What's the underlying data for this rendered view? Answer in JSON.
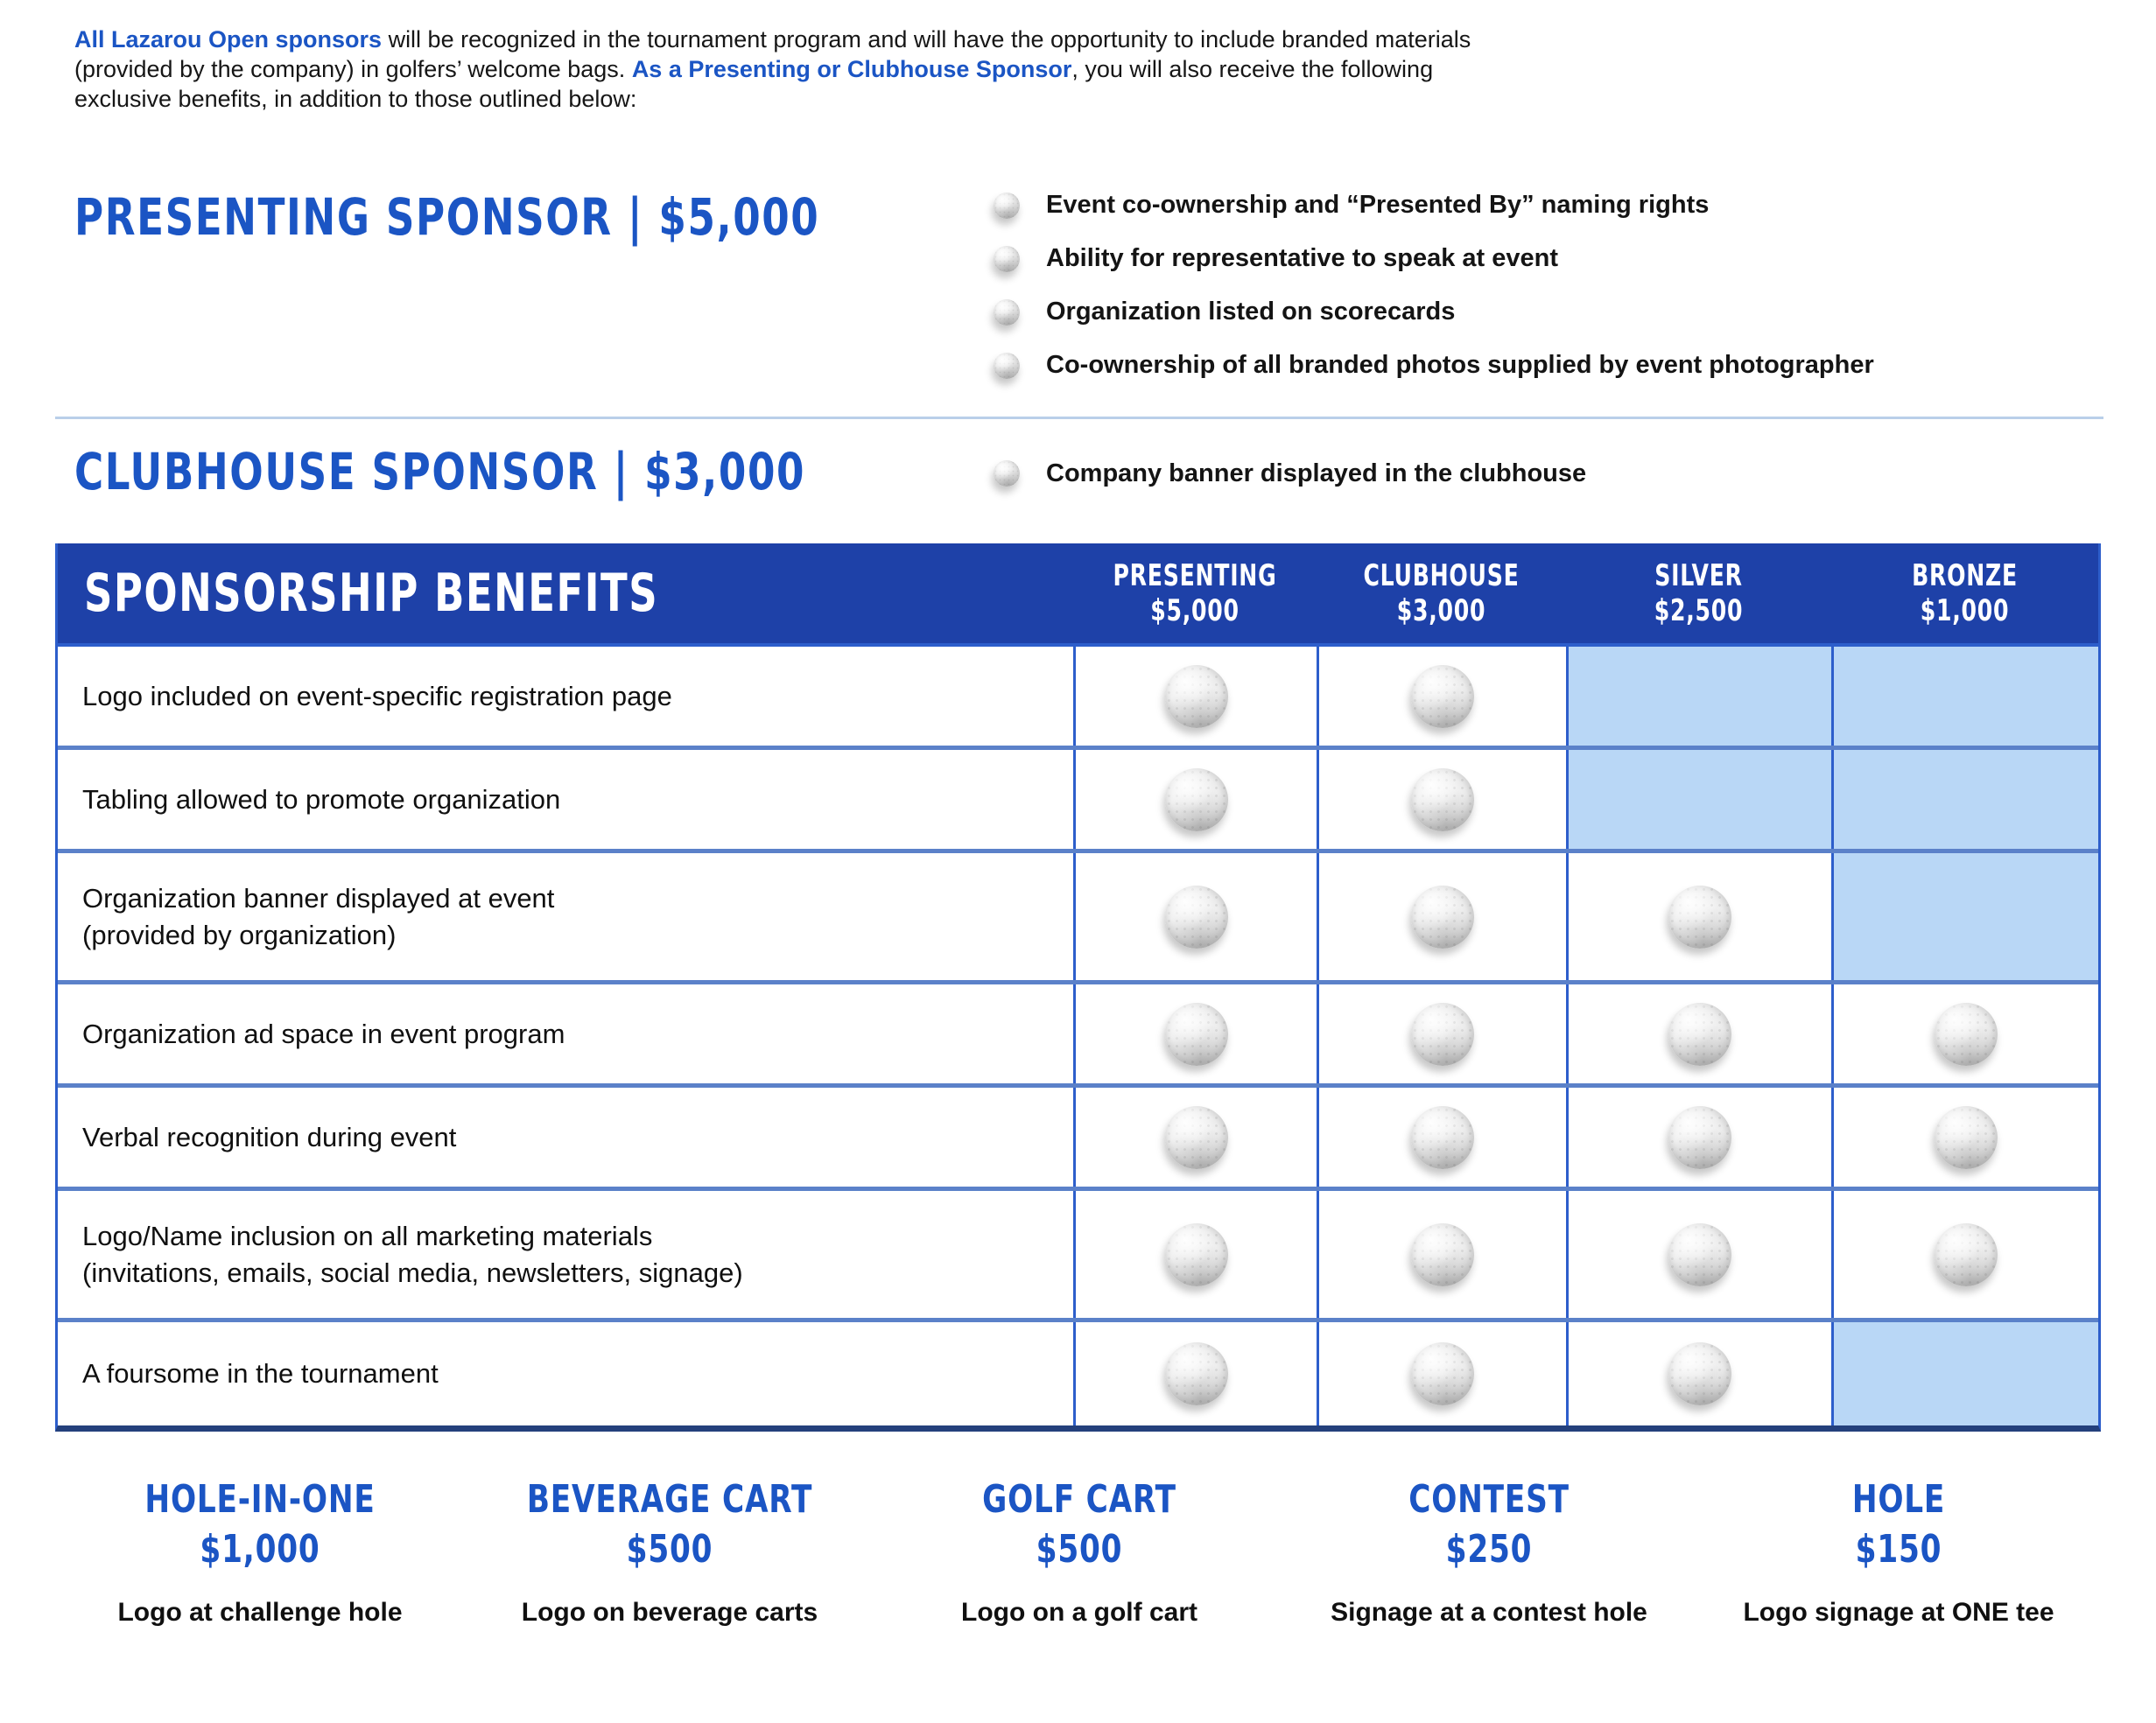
{
  "intro": {
    "highlight1": "All Lazarou Open sponsors",
    "text1": " will be recognized in the tournament program and will have the opportunity to include branded materials (provided by the company) in golfers’ welcome bags. ",
    "highlight2": "As a Presenting or Clubhouse Sponsor",
    "text2": ", you will also receive the following exclusive benefits, in addition to those outlined below:"
  },
  "presenting": {
    "title": "PRESENTING SPONSOR  |  $5,000",
    "bullets": [
      "Event co-ownership and “Presented By” naming rights",
      "Ability for representative to speak at event",
      "Organization listed on scorecards",
      "Co-ownership of all branded photos supplied by event photographer"
    ]
  },
  "clubhouse": {
    "title": "CLUBHOUSE SPONSOR  |  $3,000",
    "bullets": [
      "Company banner displayed in the clubhouse"
    ]
  },
  "table": {
    "title": "SPONSORSHIP BENEFITS",
    "columns": [
      {
        "name": "PRESENTING",
        "price": "$5,000"
      },
      {
        "name": "CLUBHOUSE",
        "price": "$3,000"
      },
      {
        "name": "SILVER",
        "price": "$2,500"
      },
      {
        "name": "BRONZE",
        "price": "$1,000"
      }
    ],
    "rows": [
      {
        "label": "Logo included on event-specific registration page",
        "cells": [
          true,
          true,
          false,
          false
        ]
      },
      {
        "label": "Tabling allowed to promote organization",
        "cells": [
          true,
          true,
          false,
          false
        ]
      },
      {
        "label": "Organization banner displayed at event",
        "label2": "(provided by organization)",
        "cells": [
          true,
          true,
          true,
          false
        ]
      },
      {
        "label": "Organization ad space in event program",
        "cells": [
          true,
          true,
          true,
          true
        ]
      },
      {
        "label": "Verbal recognition during event",
        "cells": [
          true,
          true,
          true,
          true
        ]
      },
      {
        "label": "Logo/Name inclusion on all marketing materials",
        "label2": "(invitations, emails, social media, newsletters, signage)",
        "cells": [
          true,
          true,
          true,
          true
        ]
      },
      {
        "label": "A foursome in the tournament",
        "cells": [
          true,
          true,
          true,
          false
        ]
      }
    ]
  },
  "addons": [
    {
      "name": "HOLE-IN-ONE",
      "price": "$1,000",
      "desc": "Logo at challenge hole"
    },
    {
      "name": "BEVERAGE CART",
      "price": "$500",
      "desc": "Logo on beverage carts"
    },
    {
      "name": "GOLF CART",
      "price": "$500",
      "desc": "Logo on a golf cart"
    },
    {
      "name": "CONTEST",
      "price": "$250",
      "desc": "Signage at a contest hole"
    },
    {
      "name": "HOLE",
      "price": "$150",
      "desc": "Logo signage at ONE tee"
    }
  ],
  "colors": {
    "heading_blue": "#1b55c4",
    "table_header_bg": "#1e41a8",
    "shaded_cell_blue": "#b9d7f6",
    "cell_border_blue": "#2d5ecb",
    "row_divider_blue": "#5b81c9",
    "section_divider_blue": "#b9cfe9",
    "table_bottom_border": "#24407c",
    "body_text": "#161616"
  }
}
